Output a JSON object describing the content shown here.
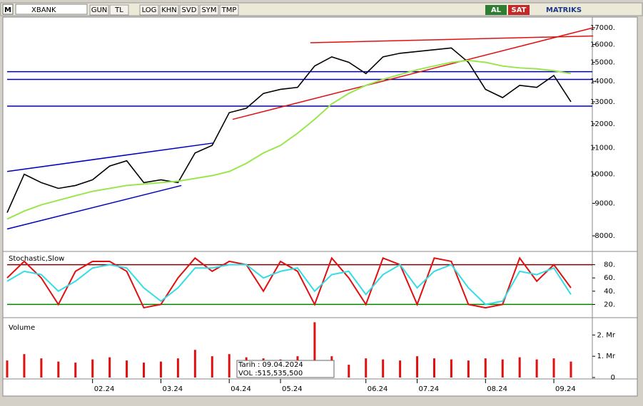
{
  "toolbar": {
    "logo": "M",
    "symbol": "XBANK",
    "buttons": [
      "GUN",
      "TL",
      "LOG",
      "KHN",
      "SVD",
      "SYM",
      "TMP"
    ],
    "buy": "AL",
    "sell": "SAT",
    "brand": "MATRIKS"
  },
  "tooltip": {
    "date": "Tarih : 09.04.2024",
    "volume": "VOL       :515,535,500"
  },
  "chart_data": [
    {
      "type": "line",
      "log": true,
      "categories": [
        null,
        null,
        null,
        null,
        null,
        "02.24",
        null,
        null,
        null,
        "03.24",
        null,
        null,
        null,
        "04.24",
        null,
        null,
        "05.24",
        null,
        null,
        null,
        null,
        "06.24",
        null,
        null,
        "07.24",
        null,
        null,
        null,
        "08.24",
        null,
        null,
        null,
        "09.24",
        null
      ],
      "series": [
        {
          "color": "#000000",
          "values": [
            8700,
            10000,
            9700,
            9500,
            9600,
            9800,
            10300,
            10500,
            9700,
            9800,
            9700,
            10800,
            11100,
            12500,
            12700,
            13400,
            13600,
            13700,
            14800,
            15300,
            15000,
            14400,
            15300,
            15500,
            15600,
            15700,
            15800,
            15000,
            13600,
            13200,
            13800,
            13700,
            14300,
            13000
          ]
        },
        {
          "color": "#99e64d",
          "values": [
            8500,
            8750,
            8950,
            9100,
            9250,
            9400,
            9500,
            9600,
            9650,
            9700,
            9750,
            9850,
            9950,
            10100,
            10400,
            10800,
            11100,
            11600,
            12200,
            12900,
            13400,
            13800,
            14100,
            14350,
            14600,
            14800,
            15000,
            15100,
            15000,
            14800,
            14700,
            14650,
            14550,
            14400
          ]
        }
      ],
      "levels": [
        {
          "value": 14500,
          "color": "#0000a0"
        },
        {
          "value": 14100,
          "color": "#0000a0"
        },
        {
          "value": 12800,
          "color": "#0000a0"
        }
      ],
      "trend_lines": [
        {
          "color": "#e01010",
          "points": [
            [
              13.2,
              12200
            ],
            [
              34.3,
              17000
            ]
          ]
        },
        {
          "color": "#e01010",
          "points": [
            [
              17.75,
              16100
            ],
            [
              34.3,
              16500
            ]
          ]
        },
        {
          "color": "#0000c0",
          "points": [
            [
              0,
              10100
            ],
            [
              12.1,
              11200
            ]
          ]
        },
        {
          "color": "#0000c0",
          "points": [
            [
              0,
              8200
            ],
            [
              10.2,
              9600
            ]
          ]
        }
      ],
      "ylim": [
        7560,
        17670
      ],
      "yticks": [
        {
          "value": 8000,
          "label": "8000."
        },
        {
          "value": 9000,
          "label": "9000."
        },
        {
          "value": 10000,
          "label": "10000."
        },
        {
          "value": 11000,
          "label": "11000."
        },
        {
          "value": 12000,
          "label": "12000."
        },
        {
          "value": 13000,
          "label": "13000."
        },
        {
          "value": 14000,
          "label": "14000."
        },
        {
          "value": 15000,
          "label": "15000."
        },
        {
          "value": 16000,
          "label": "16000."
        },
        {
          "value": 17000,
          "label": "17000."
        }
      ]
    },
    {
      "type": "line",
      "title": "Stochastic,Slow",
      "series": [
        {
          "color": "#e01010",
          "values": [
            60,
            85,
            60,
            20,
            70,
            85,
            85,
            70,
            15,
            20,
            60,
            90,
            70,
            85,
            80,
            40,
            85,
            70,
            20,
            90,
            60,
            20,
            90,
            80,
            20,
            90,
            85,
            20,
            15,
            20,
            90,
            55,
            80,
            45
          ]
        },
        {
          "color": "#33dde6",
          "values": [
            55,
            70,
            65,
            40,
            55,
            75,
            80,
            75,
            45,
            25,
            45,
            75,
            75,
            80,
            80,
            60,
            70,
            75,
            40,
            65,
            70,
            35,
            65,
            80,
            45,
            70,
            80,
            45,
            20,
            25,
            70,
            65,
            75,
            35
          ]
        }
      ],
      "levels": [
        {
          "value": 80,
          "color": "#800000"
        },
        {
          "value": 20,
          "color": "#008000"
        }
      ],
      "ylim": [
        0,
        100
      ],
      "yticks": [
        {
          "value": 20,
          "label": "20."
        },
        {
          "value": 40,
          "label": "40."
        },
        {
          "value": 60,
          "label": "60."
        },
        {
          "value": 80,
          "label": "80."
        }
      ]
    },
    {
      "type": "bar",
      "title": "Volume",
      "color": "#e01010",
      "values": [
        800000,
        1100000,
        900000,
        750000,
        700000,
        850000,
        950000,
        800000,
        700000,
        750000,
        900000,
        1300000,
        1000000,
        1100000,
        950000,
        900000,
        850000,
        1000000,
        2600000,
        1000000,
        600000,
        900000,
        850000,
        800000,
        1000000,
        900000,
        850000,
        800000,
        900000,
        850000,
        950000,
        850000,
        900000,
        750000
      ],
      "ylim": [
        0,
        2680000
      ],
      "yticks": [
        0,
        {
          "value": 1000000,
          "label": "1. Mr"
        },
        {
          "value": 2000000,
          "label": "2. Mr"
        }
      ]
    }
  ]
}
